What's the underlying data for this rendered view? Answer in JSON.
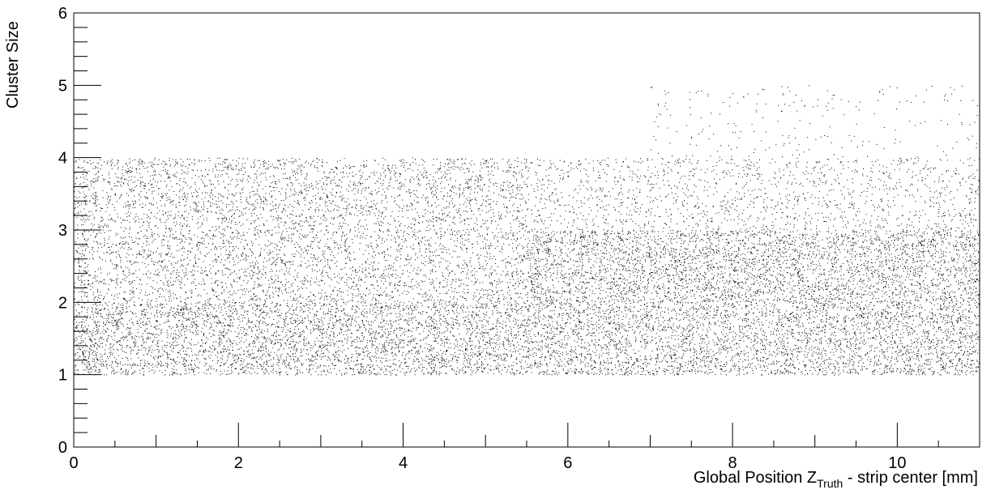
{
  "chart_data": {
    "type": "scatter",
    "xlabel_main": "Global Position Z",
    "xlabel_sub": "Truth",
    "xlabel_tail": " - strip center [mm]",
    "ylabel": "Cluster Size",
    "xlim": [
      0,
      11
    ],
    "ylim": [
      0,
      6
    ],
    "x_ticks": [
      0,
      2,
      4,
      6,
      8,
      10
    ],
    "x_tick_labels": [
      "0",
      "2",
      "4",
      "6",
      "8",
      "10"
    ],
    "y_ticks": [
      0,
      1,
      2,
      3,
      4,
      5,
      6
    ],
    "y_tick_labels": [
      "0",
      "1",
      "2",
      "3",
      "4",
      "5",
      "6"
    ],
    "grid": false,
    "marker_color": "#000000",
    "bands": [
      {
        "x_range": [
          0,
          11
        ],
        "y_range": [
          1,
          2
        ],
        "density": "high"
      },
      {
        "x_range": [
          0,
          5.5
        ],
        "y_range": [
          2,
          4
        ],
        "density": "medium"
      },
      {
        "x_range": [
          5.5,
          11
        ],
        "y_range": [
          2,
          3
        ],
        "density": "medium-high"
      },
      {
        "x_range": [
          5.5,
          11
        ],
        "y_range": [
          3,
          4
        ],
        "density": "low"
      },
      {
        "x_range": [
          7,
          11
        ],
        "y_range": [
          4,
          5
        ],
        "density": "very low"
      }
    ]
  }
}
